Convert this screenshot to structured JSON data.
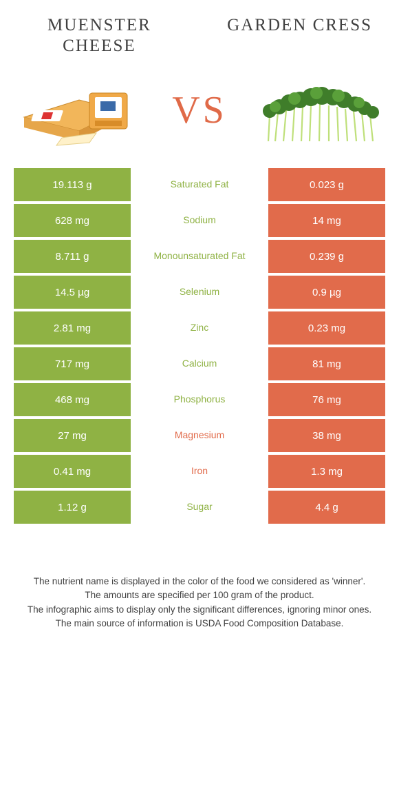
{
  "header": {
    "left_title": "MUENSTER CHEESE",
    "right_title": "GARDEN CRESS",
    "vs": "VS"
  },
  "colors": {
    "left": "#8fb244",
    "right": "#e16b4b",
    "vs": "#e06a48",
    "title": "#404040",
    "footnote": "#404040"
  },
  "rows": [
    {
      "left": "19.113 g",
      "label": "Saturated Fat",
      "right": "0.023 g",
      "winner": "left"
    },
    {
      "left": "628 mg",
      "label": "Sodium",
      "right": "14 mg",
      "winner": "left"
    },
    {
      "left": "8.711 g",
      "label": "Monounsaturated Fat",
      "right": "0.239 g",
      "winner": "left"
    },
    {
      "left": "14.5 µg",
      "label": "Selenium",
      "right": "0.9 µg",
      "winner": "left"
    },
    {
      "left": "2.81 mg",
      "label": "Zinc",
      "right": "0.23 mg",
      "winner": "left"
    },
    {
      "left": "717 mg",
      "label": "Calcium",
      "right": "81 mg",
      "winner": "left"
    },
    {
      "left": "468 mg",
      "label": "Phosphorus",
      "right": "76 mg",
      "winner": "left"
    },
    {
      "left": "27 mg",
      "label": "Magnesium",
      "right": "38 mg",
      "winner": "right"
    },
    {
      "left": "0.41 mg",
      "label": "Iron",
      "right": "1.3 mg",
      "winner": "right"
    },
    {
      "left": "1.12 g",
      "label": "Sugar",
      "right": "4.4 g",
      "winner": "left"
    }
  ],
  "footnotes": [
    "The nutrient name is displayed in the color of the food we considered as 'winner'.",
    "The amounts are specified per 100 gram of the product.",
    "The infographic aims to display only the significant differences, ignoring minor ones.",
    "The main source of information is USDA Food Composition Database."
  ]
}
